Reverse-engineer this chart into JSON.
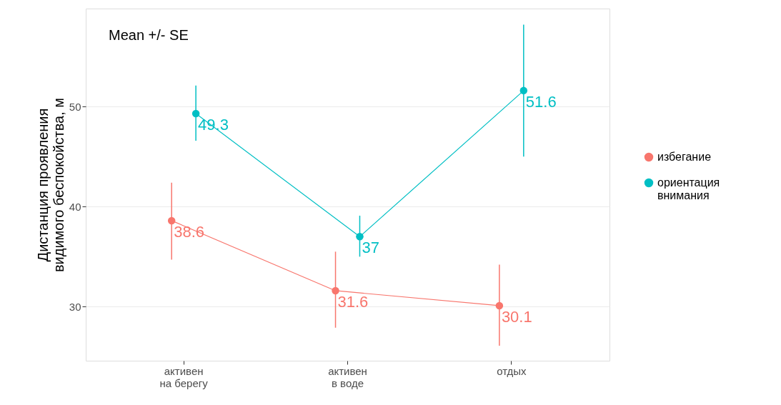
{
  "chart_data": {
    "type": "line",
    "ylabel": "Дистанция проявления\nвидимого беспокойства, м",
    "categories": [
      "активен\nна берегу",
      "активен\nв воде",
      "отдых"
    ],
    "series": [
      {
        "name": "избегание",
        "color": "#f8766d",
        "values": [
          38.6,
          31.6,
          30.1
        ],
        "errors": [
          [
            34.7,
            42.4
          ],
          [
            27.9,
            35.5
          ],
          [
            26.1,
            34.2
          ]
        ]
      },
      {
        "name": "ориентация\nвнимания",
        "color": "#00bfc4",
        "values": [
          49.3,
          37,
          51.6
        ],
        "errors": [
          [
            46.6,
            52.1
          ],
          [
            35.0,
            39.1
          ],
          [
            45.0,
            58.2
          ]
        ]
      }
    ],
    "annotations": [
      "Mean +/- SE"
    ],
    "ylim": [
      24.6,
      59.8
    ],
    "yticks": [
      30,
      40,
      50
    ],
    "grid": "y",
    "legend": "right",
    "marker": "circle",
    "data_labels": true
  }
}
